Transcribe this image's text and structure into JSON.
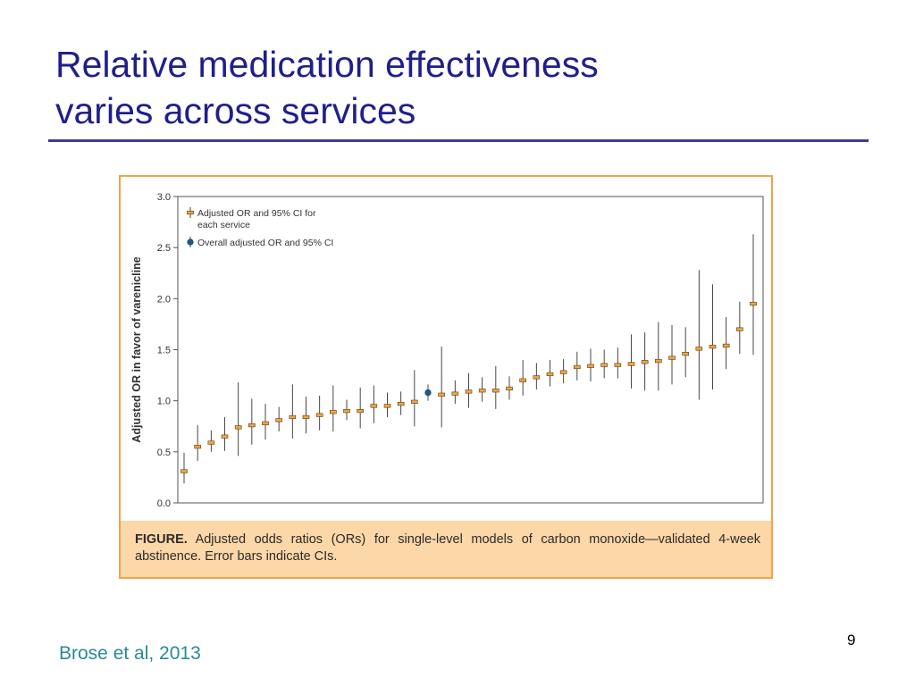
{
  "slide": {
    "title_line1": "Relative medication effectiveness",
    "title_line2": "varies across services",
    "page_number": "9",
    "citation": "Brose et al, 2013",
    "colors": {
      "title": "#1f1f8c",
      "rule": "#3a3aa0",
      "frame": "#f0a54a",
      "caption_band": "#fcd7a8",
      "citation": "#2a8a96"
    }
  },
  "figure": {
    "caption_label": "FIGURE.",
    "caption_text": " Adjusted odds ratios (ORs) for single-level models of carbon monoxide—validated 4-week abstinence. Error bars indicate CIs."
  },
  "chart_data": {
    "type": "scatter",
    "ylabel": "Adjusted OR in favor of varenicline",
    "ylim": [
      0,
      3
    ],
    "yticks": [
      "0.0",
      "0.5",
      "1.0",
      "1.5",
      "2.0",
      "2.5",
      "3.0"
    ],
    "grid": false,
    "legend_position": "top-left",
    "legend": [
      {
        "label": "Adjusted OR and 95% CI for each service",
        "color": "#f0a540"
      },
      {
        "label": "Overall adjusted OR and 95% CI",
        "color": "#1a5a8a"
      }
    ],
    "series": [
      {
        "name": "Adjusted OR and 95% CI for each service",
        "color": "#f0a540",
        "points": [
          {
            "or": 0.31,
            "lo": 0.19,
            "hi": 0.49
          },
          {
            "or": 0.55,
            "lo": 0.41,
            "hi": 0.76
          },
          {
            "or": 0.59,
            "lo": 0.5,
            "hi": 0.71
          },
          {
            "or": 0.65,
            "lo": 0.51,
            "hi": 0.84
          },
          {
            "or": 0.74,
            "lo": 0.46,
            "hi": 1.18
          },
          {
            "or": 0.76,
            "lo": 0.57,
            "hi": 1.02
          },
          {
            "or": 0.78,
            "lo": 0.62,
            "hi": 0.97
          },
          {
            "or": 0.81,
            "lo": 0.7,
            "hi": 0.94
          },
          {
            "or": 0.84,
            "lo": 0.63,
            "hi": 1.16
          },
          {
            "or": 0.84,
            "lo": 0.68,
            "hi": 1.04
          },
          {
            "or": 0.86,
            "lo": 0.71,
            "hi": 1.05
          },
          {
            "or": 0.89,
            "lo": 0.7,
            "hi": 1.15
          },
          {
            "or": 0.9,
            "lo": 0.81,
            "hi": 1.01
          },
          {
            "or": 0.9,
            "lo": 0.73,
            "hi": 1.13
          },
          {
            "or": 0.95,
            "lo": 0.78,
            "hi": 1.15
          },
          {
            "or": 0.95,
            "lo": 0.84,
            "hi": 1.08
          },
          {
            "or": 0.97,
            "lo": 0.86,
            "hi": 1.09
          },
          {
            "or": 0.99,
            "lo": 0.75,
            "hi": 1.3
          },
          {
            "or": 1.06,
            "lo": 0.74,
            "hi": 1.53
          },
          {
            "or": 1.07,
            "lo": 0.97,
            "hi": 1.2
          },
          {
            "or": 1.09,
            "lo": 0.93,
            "hi": 1.27
          },
          {
            "or": 1.1,
            "lo": 0.99,
            "hi": 1.23
          },
          {
            "or": 1.1,
            "lo": 0.92,
            "hi": 1.34
          },
          {
            "or": 1.12,
            "lo": 1.01,
            "hi": 1.24
          },
          {
            "or": 1.2,
            "lo": 1.05,
            "hi": 1.4
          },
          {
            "or": 1.23,
            "lo": 1.11,
            "hi": 1.37
          },
          {
            "or": 1.26,
            "lo": 1.14,
            "hi": 1.4
          },
          {
            "or": 1.28,
            "lo": 1.17,
            "hi": 1.41
          },
          {
            "or": 1.33,
            "lo": 1.2,
            "hi": 1.48
          },
          {
            "or": 1.34,
            "lo": 1.19,
            "hi": 1.51
          },
          {
            "or": 1.35,
            "lo": 1.22,
            "hi": 1.5
          },
          {
            "or": 1.35,
            "lo": 1.22,
            "hi": 1.52
          },
          {
            "or": 1.36,
            "lo": 1.12,
            "hi": 1.65
          },
          {
            "or": 1.38,
            "lo": 1.1,
            "hi": 1.67
          },
          {
            "or": 1.39,
            "lo": 1.1,
            "hi": 1.77
          },
          {
            "or": 1.42,
            "lo": 1.16,
            "hi": 1.74
          },
          {
            "or": 1.46,
            "lo": 1.23,
            "hi": 1.72
          },
          {
            "or": 1.51,
            "lo": 1.01,
            "hi": 2.28
          },
          {
            "or": 1.53,
            "lo": 1.11,
            "hi": 2.14
          },
          {
            "or": 1.54,
            "lo": 1.31,
            "hi": 1.82
          },
          {
            "or": 1.7,
            "lo": 1.46,
            "hi": 1.97
          },
          {
            "or": 1.95,
            "lo": 1.45,
            "hi": 2.63
          }
        ]
      },
      {
        "name": "Overall adjusted OR and 95% CI",
        "color": "#1a5a8a",
        "position_after_service_index": 18,
        "points": [
          {
            "or": 1.08,
            "lo": 1.0,
            "hi": 1.16
          }
        ]
      }
    ]
  }
}
